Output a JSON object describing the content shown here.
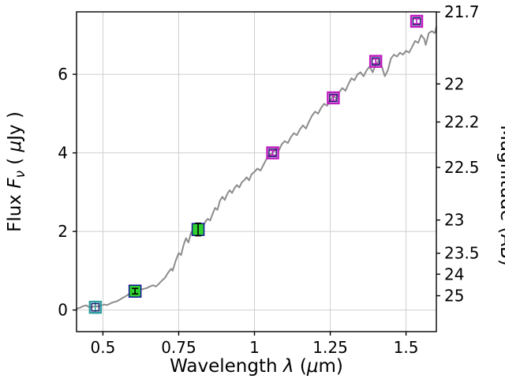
{
  "figure": {
    "background": "#ffffff",
    "axes_edge_color": "#000000",
    "grid_color": "#cfcfcf"
  },
  "chart_data": {
    "type": "line",
    "title": "",
    "xlabel": "Wavelength λ (μm)",
    "xlabel_parts": [
      {
        "t": "Wavelength ",
        "i": false
      },
      {
        "t": "λ",
        "i": true
      },
      {
        "t": " (",
        "i": false
      },
      {
        "t": "μ",
        "i": true
      },
      {
        "t": "m)",
        "i": false
      }
    ],
    "ylabel_left": "Flux Fν ( μJy )",
    "ylabel_left_parts": [
      {
        "t": "Flux  ",
        "i": false
      },
      {
        "t": "F",
        "i": true
      },
      {
        "t": "ν",
        "i": true,
        "sub": true
      },
      {
        "t": "  ( ",
        "i": false
      },
      {
        "t": "μ",
        "i": true
      },
      {
        "t": "Jy )",
        "i": false
      }
    ],
    "ylabel_right": "Magnitude (AB)",
    "xlim": [
      0.413,
      1.6
    ],
    "ylim": [
      -0.55,
      7.59
    ],
    "x_ticks": [
      0.5,
      0.75,
      1.0,
      1.25,
      1.5
    ],
    "x_tick_labels": [
      "0.5",
      "0.75",
      "1",
      "1.25",
      "1.5"
    ],
    "y_ticks_left": [
      0,
      2,
      4,
      6
    ],
    "y_tick_labels_left": [
      "0",
      "2",
      "4",
      "6"
    ],
    "y_ticks_right": [
      21.7,
      22,
      22.2,
      22.5,
      23,
      23.5,
      24,
      25
    ],
    "y_tick_labels_right": [
      "21.7",
      "22",
      "22.2",
      "22.5",
      "23",
      "23.5",
      "24",
      "25"
    ],
    "right_axis_ab_zeropoint": 23.9,
    "grid": true,
    "series": [
      {
        "name": "model_spectrum",
        "kind": "line",
        "color": "#8c8c8c",
        "width": 2,
        "points": [
          [
            0.413,
            0.03
          ],
          [
            0.425,
            0.06
          ],
          [
            0.435,
            0.1
          ],
          [
            0.445,
            0.12
          ],
          [
            0.455,
            0.07
          ],
          [
            0.465,
            0.08
          ],
          [
            0.475,
            0.1
          ],
          [
            0.485,
            0.09
          ],
          [
            0.495,
            0.12
          ],
          [
            0.505,
            0.14
          ],
          [
            0.515,
            0.13
          ],
          [
            0.525,
            0.17
          ],
          [
            0.535,
            0.2
          ],
          [
            0.545,
            0.22
          ],
          [
            0.555,
            0.26
          ],
          [
            0.565,
            0.31
          ],
          [
            0.575,
            0.35
          ],
          [
            0.585,
            0.4
          ],
          [
            0.595,
            0.44
          ],
          [
            0.605,
            0.47
          ],
          [
            0.615,
            0.5
          ],
          [
            0.625,
            0.52
          ],
          [
            0.635,
            0.54
          ],
          [
            0.645,
            0.56
          ],
          [
            0.655,
            0.6
          ],
          [
            0.665,
            0.63
          ],
          [
            0.675,
            0.6
          ],
          [
            0.685,
            0.67
          ],
          [
            0.695,
            0.75
          ],
          [
            0.705,
            0.82
          ],
          [
            0.715,
            0.95
          ],
          [
            0.725,
            1.05
          ],
          [
            0.73,
            1.0
          ],
          [
            0.74,
            1.25
          ],
          [
            0.75,
            1.45
          ],
          [
            0.758,
            1.4
          ],
          [
            0.766,
            1.65
          ],
          [
            0.774,
            1.83
          ],
          [
            0.782,
            1.72
          ],
          [
            0.79,
            1.95
          ],
          [
            0.798,
            2.05
          ],
          [
            0.806,
            2.0
          ],
          [
            0.814,
            2.1
          ],
          [
            0.822,
            2.18
          ],
          [
            0.83,
            2.12
          ],
          [
            0.838,
            2.25
          ],
          [
            0.846,
            2.32
          ],
          [
            0.854,
            2.28
          ],
          [
            0.862,
            2.45
          ],
          [
            0.87,
            2.6
          ],
          [
            0.878,
            2.55
          ],
          [
            0.886,
            2.78
          ],
          [
            0.894,
            2.88
          ],
          [
            0.902,
            2.8
          ],
          [
            0.91,
            2.95
          ],
          [
            0.918,
            3.05
          ],
          [
            0.926,
            2.98
          ],
          [
            0.934,
            3.1
          ],
          [
            0.942,
            3.18
          ],
          [
            0.95,
            3.12
          ],
          [
            0.958,
            3.25
          ],
          [
            0.966,
            3.3
          ],
          [
            0.974,
            3.38
          ],
          [
            0.982,
            3.3
          ],
          [
            0.99,
            3.45
          ],
          [
            1.0,
            3.52
          ],
          [
            1.01,
            3.6
          ],
          [
            1.02,
            3.55
          ],
          [
            1.03,
            3.7
          ],
          [
            1.04,
            3.85
          ],
          [
            1.05,
            3.95
          ],
          [
            1.06,
            4.0
          ],
          [
            1.07,
            4.1
          ],
          [
            1.08,
            4.05
          ],
          [
            1.09,
            4.22
          ],
          [
            1.1,
            4.3
          ],
          [
            1.11,
            4.25
          ],
          [
            1.12,
            4.4
          ],
          [
            1.13,
            4.5
          ],
          [
            1.14,
            4.45
          ],
          [
            1.15,
            4.6
          ],
          [
            1.16,
            4.7
          ],
          [
            1.17,
            4.62
          ],
          [
            1.18,
            4.8
          ],
          [
            1.19,
            4.95
          ],
          [
            1.2,
            5.05
          ],
          [
            1.21,
            5.0
          ],
          [
            1.22,
            5.15
          ],
          [
            1.23,
            5.25
          ],
          [
            1.24,
            5.2
          ],
          [
            1.25,
            5.35
          ],
          [
            1.26,
            5.45
          ],
          [
            1.27,
            5.38
          ],
          [
            1.28,
            5.55
          ],
          [
            1.29,
            5.65
          ],
          [
            1.3,
            5.58
          ],
          [
            1.31,
            5.75
          ],
          [
            1.32,
            5.9
          ],
          [
            1.33,
            5.85
          ],
          [
            1.34,
            6.0
          ],
          [
            1.35,
            6.05
          ],
          [
            1.36,
            5.95
          ],
          [
            1.37,
            6.1
          ],
          [
            1.38,
            6.2
          ],
          [
            1.39,
            6.05
          ],
          [
            1.4,
            6.25
          ],
          [
            1.41,
            6.35
          ],
          [
            1.42,
            6.2
          ],
          [
            1.43,
            5.95
          ],
          [
            1.44,
            6.1
          ],
          [
            1.45,
            6.4
          ],
          [
            1.46,
            6.5
          ],
          [
            1.47,
            6.45
          ],
          [
            1.48,
            6.55
          ],
          [
            1.49,
            6.5
          ],
          [
            1.5,
            6.6
          ],
          [
            1.51,
            6.55
          ],
          [
            1.52,
            6.7
          ],
          [
            1.53,
            6.85
          ],
          [
            1.54,
            6.8
          ],
          [
            1.55,
            7.0
          ],
          [
            1.56,
            6.9
          ],
          [
            1.565,
            6.75
          ],
          [
            1.575,
            7.05
          ],
          [
            1.585,
            7.1
          ],
          [
            1.595,
            7.05
          ],
          [
            1.6,
            7.2
          ]
        ]
      },
      {
        "name": "photometry_blue_band",
        "kind": "scatter",
        "marker": "open-square",
        "edge": "#2e9e9e",
        "edge2": "#1a1a6e",
        "err_color": "#2e9e9e",
        "err_in_front": false,
        "points": [
          {
            "x": 0.475,
            "y": 0.07,
            "yerr": 0.15
          }
        ]
      },
      {
        "name": "photometry_green_bands",
        "kind": "scatter",
        "marker": "filled-square",
        "face": "#2fd02f",
        "edge": "#12129a",
        "err_color": "#000000",
        "err_in_front": true,
        "points": [
          {
            "x": 0.606,
            "y": 0.48,
            "yerr": 0.07
          },
          {
            "x": 0.814,
            "y": 2.05,
            "yerr": 0.16
          }
        ]
      },
      {
        "name": "photometry_magenta_bands",
        "kind": "scatter",
        "marker": "open-square",
        "edge": "#bf19bf",
        "edge2": "#1a1a6e",
        "err_color": "#bf19bf",
        "err_in_front": false,
        "points": [
          {
            "x": 1.06,
            "y": 4.0,
            "yerr": 0.06
          },
          {
            "x": 1.26,
            "y": 5.4,
            "yerr": 0.06
          },
          {
            "x": 1.4,
            "y": 6.33,
            "yerr": 0.06
          },
          {
            "x": 1.535,
            "y": 7.35,
            "yerr": 0.06
          }
        ]
      }
    ]
  }
}
